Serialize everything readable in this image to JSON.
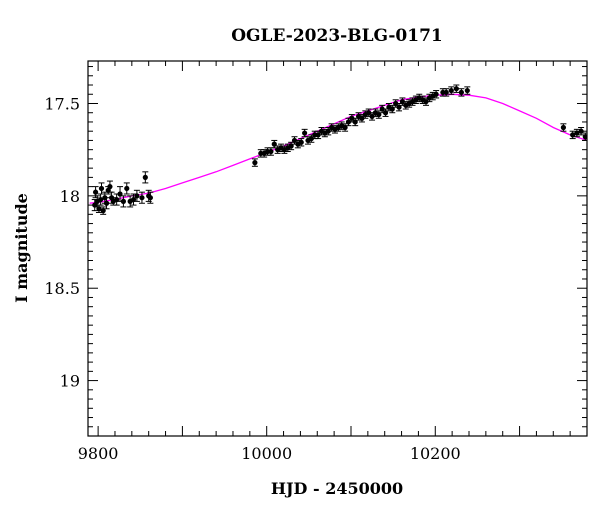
{
  "chart_data": {
    "type": "scatter",
    "title": "OGLE-2023-BLG-0171",
    "xlabel": "HJD - 2450000",
    "ylabel": "I magnitude",
    "xlim": [
      9788,
      10380
    ],
    "ylim": [
      19.3,
      17.27
    ],
    "y_inverted": true,
    "x_ticks": [
      9800,
      10000,
      10200
    ],
    "x_tick_labels": [
      "9800",
      "10000",
      "10200"
    ],
    "y_ticks": [
      17.5,
      18,
      18.5,
      19
    ],
    "y_tick_labels": [
      "17.5",
      "18",
      "18.5",
      "19"
    ],
    "legend": "none",
    "grid": false,
    "colors": {
      "data": "#000000",
      "model": "#ff00ff"
    },
    "series": [
      {
        "type": "scatter_with_errorbars",
        "x": [
          9796,
          9797,
          9799,
          9801,
          9803,
          9804,
          9806,
          9808,
          9810,
          9812,
          9814,
          9816,
          9818,
          9822,
          9826,
          9830,
          9834,
          9838,
          9842,
          9846,
          9852,
          9856,
          9860,
          9862,
          9986,
          9993,
          9997,
          10001,
          10005,
          10009,
          10013,
          10017,
          10021,
          10025,
          10029,
          10033,
          10037,
          10041,
          10045,
          10049,
          10053,
          10057,
          10061,
          10065,
          10069,
          10073,
          10077,
          10081,
          10085,
          10089,
          10093,
          10097,
          10101,
          10105,
          10109,
          10113,
          10117,
          10121,
          10125,
          10129,
          10133,
          10137,
          10141,
          10145,
          10149,
          10153,
          10157,
          10161,
          10165,
          10169,
          10173,
          10177,
          10181,
          10185,
          10189,
          10193,
          10197,
          10201,
          10209,
          10213,
          10219,
          10225,
          10231,
          10238,
          10352,
          10363,
          10368,
          10373,
          10378
        ],
        "y": [
          18.05,
          17.98,
          18.03,
          18.07,
          18.02,
          17.96,
          18.08,
          18.01,
          18.04,
          17.97,
          17.95,
          18.01,
          18.03,
          18.02,
          17.99,
          18.03,
          17.96,
          18.03,
          18.02,
          18.0,
          18.01,
          17.9,
          18.0,
          18.01,
          17.82,
          17.77,
          17.77,
          17.76,
          17.76,
          17.72,
          17.75,
          17.74,
          17.75,
          17.74,
          17.73,
          17.7,
          17.72,
          17.71,
          17.66,
          17.7,
          17.69,
          17.67,
          17.67,
          17.65,
          17.66,
          17.65,
          17.63,
          17.64,
          17.63,
          17.62,
          17.63,
          17.6,
          17.58,
          17.6,
          17.57,
          17.58,
          17.56,
          17.55,
          17.57,
          17.55,
          17.56,
          17.53,
          17.55,
          17.52,
          17.53,
          17.5,
          17.52,
          17.49,
          17.51,
          17.5,
          17.49,
          17.48,
          17.47,
          17.48,
          17.49,
          17.47,
          17.46,
          17.45,
          17.44,
          17.44,
          17.43,
          17.42,
          17.44,
          17.43,
          17.63,
          17.67,
          17.66,
          17.65,
          17.68
        ],
        "err": [
          0.03,
          0.03,
          0.03,
          0.02,
          0.03,
          0.03,
          0.02,
          0.03,
          0.03,
          0.02,
          0.03,
          0.03,
          0.02,
          0.03,
          0.04,
          0.03,
          0.03,
          0.03,
          0.03,
          0.03,
          0.03,
          0.03,
          0.03,
          0.03,
          0.02,
          0.02,
          0.02,
          0.02,
          0.02,
          0.02,
          0.02,
          0.02,
          0.02,
          0.02,
          0.02,
          0.02,
          0.02,
          0.02,
          0.02,
          0.02,
          0.02,
          0.02,
          0.02,
          0.02,
          0.02,
          0.02,
          0.02,
          0.02,
          0.02,
          0.02,
          0.02,
          0.02,
          0.02,
          0.02,
          0.02,
          0.02,
          0.02,
          0.02,
          0.02,
          0.02,
          0.02,
          0.02,
          0.02,
          0.02,
          0.02,
          0.02,
          0.02,
          0.02,
          0.02,
          0.02,
          0.02,
          0.02,
          0.02,
          0.02,
          0.02,
          0.02,
          0.02,
          0.02,
          0.02,
          0.02,
          0.02,
          0.02,
          0.02,
          0.02,
          0.02,
          0.02,
          0.02,
          0.02,
          0.02
        ]
      },
      {
        "type": "model_curve",
        "x": [
          9790,
          9800,
          9820,
          9840,
          9860,
          9880,
          9900,
          9920,
          9940,
          9960,
          9980,
          10000,
          10020,
          10040,
          10060,
          10080,
          10100,
          10120,
          10140,
          10160,
          10180,
          10200,
          10220,
          10240,
          10260,
          10280,
          10300,
          10320,
          10340,
          10360,
          10380
        ],
        "y": [
          18.04,
          18.035,
          18.02,
          18.0,
          17.985,
          17.96,
          17.93,
          17.9,
          17.87,
          17.835,
          17.8,
          17.765,
          17.73,
          17.69,
          17.65,
          17.61,
          17.57,
          17.54,
          17.51,
          17.48,
          17.465,
          17.455,
          17.45,
          17.455,
          17.47,
          17.5,
          17.54,
          17.58,
          17.63,
          17.67,
          17.7
        ]
      }
    ]
  }
}
